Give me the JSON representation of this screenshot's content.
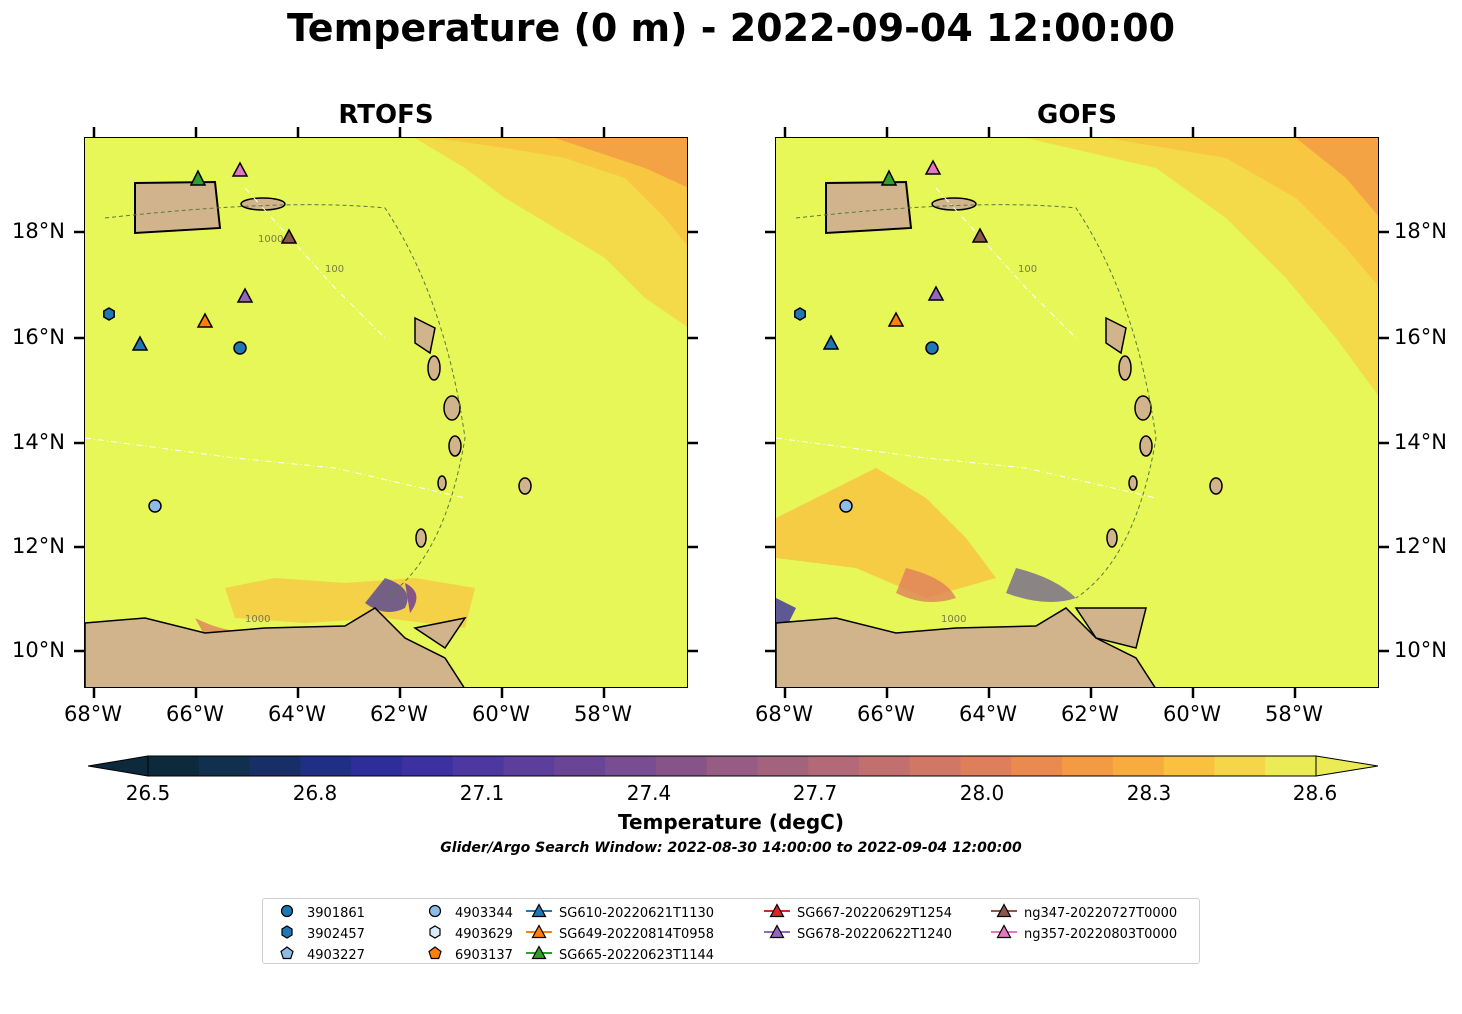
{
  "title": "Temperature (0 m) - 2022-09-04 12:00:00",
  "panels": [
    {
      "name": "RTOFS"
    },
    {
      "name": "GOFS"
    }
  ],
  "lon_ticks": [
    "68°W",
    "66°W",
    "64°W",
    "62°W",
    "60°W",
    "58°W"
  ],
  "lat_ticks": [
    "18°N",
    "16°N",
    "14°N",
    "12°N",
    "10°N"
  ],
  "contour_labels": [
    "1000",
    "100"
  ],
  "colorbar": {
    "ticks": [
      "26.5",
      "26.8",
      "27.1",
      "27.4",
      "27.7",
      "28.0",
      "28.3",
      "28.6"
    ],
    "label": "Temperature (degC)",
    "min": 26.5,
    "max": 28.6,
    "colors": [
      "#0c2a3b",
      "#11304e",
      "#172f66",
      "#1f2f86",
      "#2d2e9a",
      "#3d31a2",
      "#4d37a1",
      "#5c3e9c",
      "#6a4596",
      "#784d91",
      "#875489",
      "#965c84",
      "#a4637d",
      "#b36a78",
      "#c2706f",
      "#d07766",
      "#de7f5c",
      "#ea8a4f",
      "#f39a45",
      "#f8ac3f",
      "#f9c13e",
      "#f5d648",
      "#ebeb56"
    ]
  },
  "search_window": "Glider/Argo Search Window: 2022-08-30 14:00:00 to 2022-09-04 12:00:00",
  "legend": [
    {
      "label": "3901861",
      "marker": "circle",
      "color": "#1f77b4"
    },
    {
      "label": "3902457",
      "marker": "hexagon",
      "color": "#1f77b4"
    },
    {
      "label": "4903227",
      "marker": "pentagon",
      "color": "#8fbce6"
    },
    {
      "label": "4903344",
      "marker": "circle",
      "color": "#8fbce6"
    },
    {
      "label": "4903629",
      "marker": "hexagon",
      "color": "#d6ecfa"
    },
    {
      "label": "6903137",
      "marker": "pentagon",
      "color": "#ff7f0e"
    },
    {
      "label": "SG610-20220621T1130",
      "marker": "triangle",
      "color": "#1f77b4"
    },
    {
      "label": "SG649-20220814T0958",
      "marker": "triangle",
      "color": "#ff7f0e"
    },
    {
      "label": "SG665-20220623T1144",
      "marker": "triangle",
      "color": "#2ca02c"
    },
    {
      "label": "SG667-20220629T1254",
      "marker": "triangle",
      "color": "#d62728"
    },
    {
      "label": "SG678-20220622T1240",
      "marker": "triangle",
      "color": "#9467bd"
    },
    {
      "label": "ng347-20220727T0000",
      "marker": "triangle",
      "color": "#8c564b"
    },
    {
      "label": "ng357-20220803T0000",
      "marker": "triangle",
      "color": "#e377c2"
    }
  ],
  "colors": {
    "ocean": "#e6f757",
    "land": "#d2b48c",
    "warm": "#f39a45"
  }
}
